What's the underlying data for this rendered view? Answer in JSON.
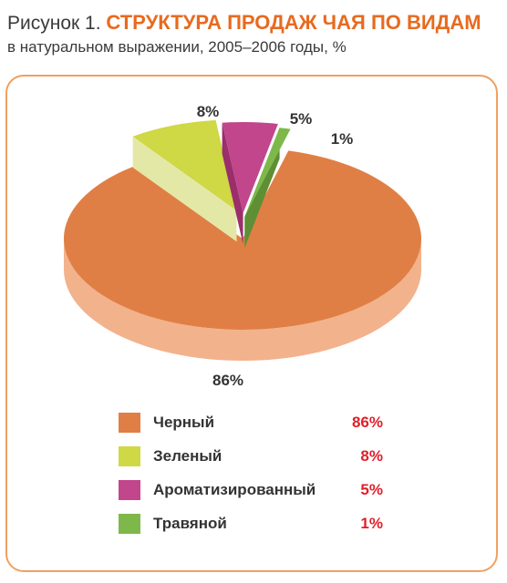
{
  "header": {
    "figure_prefix": "Рисунок 1.",
    "title": "СТРУКТУРА ПРОДАЖ ЧАЯ ПО ВИДАМ",
    "subtitle": "в натуральном выражении, 2005–2006 годы, %"
  },
  "chart_data": {
    "type": "pie",
    "style": "3d-exploded",
    "labels": [
      "Черный",
      "Зеленый",
      "Ароматизированный",
      "Травяной"
    ],
    "values": [
      86,
      8,
      5,
      1
    ],
    "value_labels": [
      "86%",
      "8%",
      "5%",
      "1%"
    ],
    "colors": [
      "#e07f45",
      "#cfd845",
      "#c2468c",
      "#7fb84a"
    ],
    "side_colors": [
      "#f2b28c",
      "#e4e8a6",
      "#9a2f6c",
      "#5e8f34"
    ],
    "legend_position": "bottom"
  },
  "legend": {
    "items": [
      {
        "label": "Черный",
        "value": "86%",
        "color": "#e07f45"
      },
      {
        "label": "Зеленый",
        "value": "8%",
        "color": "#cfd845"
      },
      {
        "label": "Ароматизированный",
        "value": "5%",
        "color": "#c2468c"
      },
      {
        "label": "Травяной",
        "value": "1%",
        "color": "#7fb84a"
      }
    ]
  }
}
